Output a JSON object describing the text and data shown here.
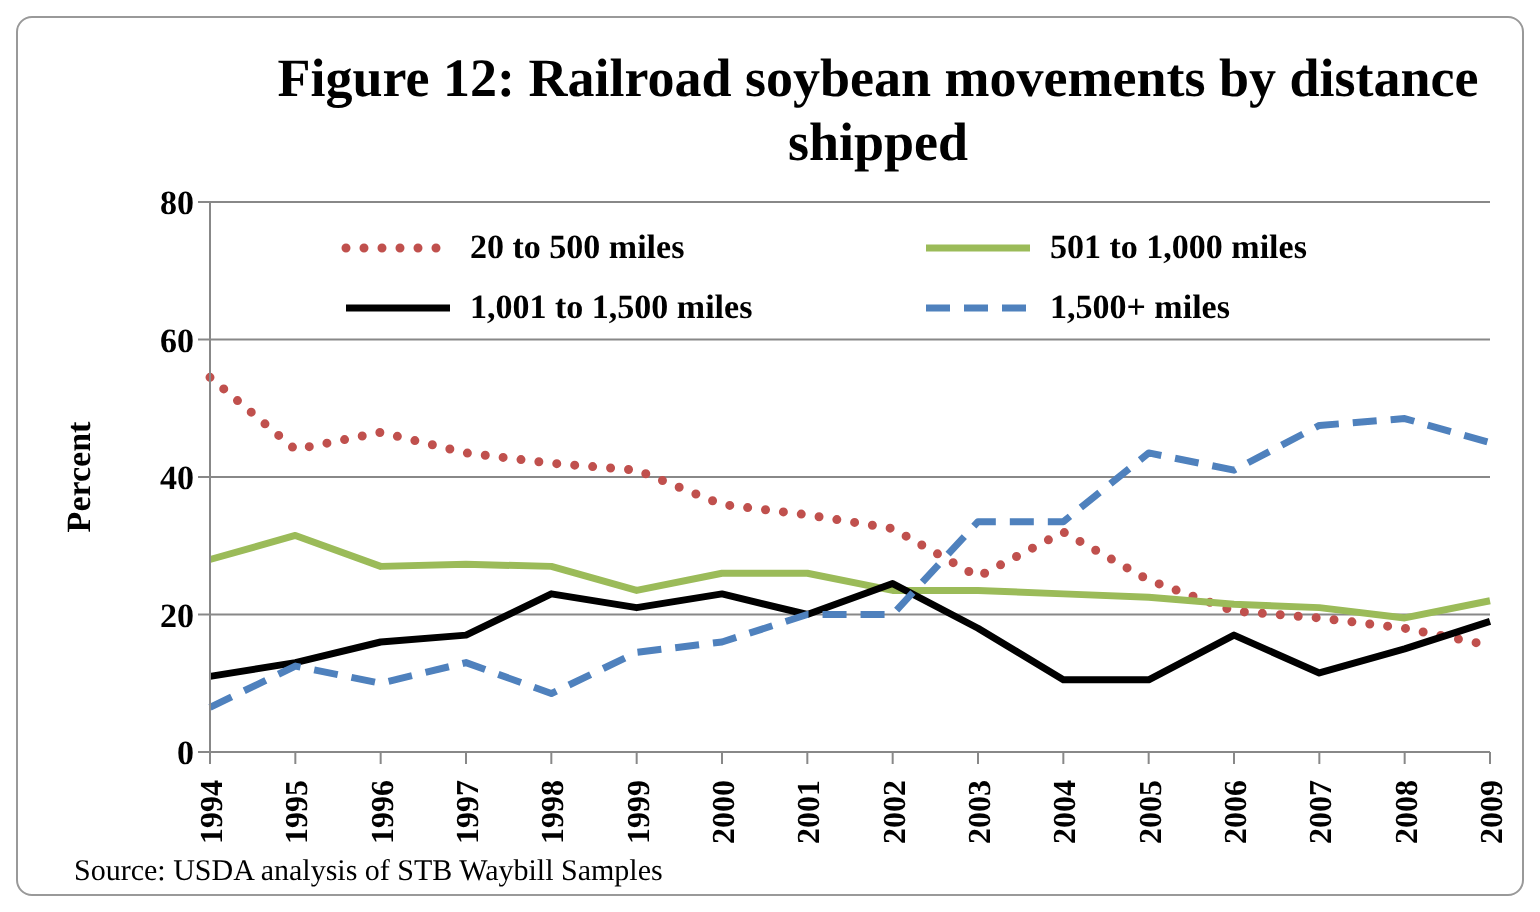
{
  "chart_data": {
    "type": "line",
    "title": "Figure 12:  Railroad soybean movements by distance shipped",
    "ylabel": "Percent",
    "annotations": [
      "Source:  USDA analysis of STB Waybill Samples"
    ],
    "categories": [
      "1994",
      "1995",
      "1996",
      "1997",
      "1998",
      "1999",
      "2000",
      "2001",
      "2002",
      "2003",
      "2004",
      "2005",
      "2006",
      "2007",
      "2008",
      "2009"
    ],
    "ylim": [
      0,
      80
    ],
    "yticks": [
      0,
      20,
      40,
      60,
      80
    ],
    "grid": "y",
    "legend": "top",
    "marker": "none",
    "series": [
      {
        "name": "20 to 500 miles",
        "color": "#c0504d",
        "line_style": "dotted",
        "values": [
          54.5,
          44,
          46.5,
          43.5,
          42,
          41,
          36,
          34.5,
          32.5,
          25.5,
          32,
          25,
          20.5,
          19.5,
          18,
          15.5
        ]
      },
      {
        "name": "501 to 1,000 miles",
        "color": "#9bbb59",
        "line_style": "solid",
        "values": [
          28,
          31.5,
          27,
          27.3,
          27,
          23.5,
          26,
          26,
          23.5,
          23.5,
          23,
          22.5,
          21.5,
          21,
          19.5,
          22
        ]
      },
      {
        "name": "1,001 to 1,500 miles",
        "color": "#000000",
        "line_style": "solid",
        "values": [
          11,
          13,
          16,
          17,
          23,
          21,
          23,
          20,
          24.5,
          18,
          10.5,
          10.5,
          17,
          11.5,
          15,
          19
        ]
      },
      {
        "name": "1,500+ miles",
        "color": "#4f81bd",
        "line_style": "dashed",
        "values": [
          6.5,
          12.5,
          10,
          13,
          8.5,
          14.5,
          16,
          20,
          20,
          33.5,
          33.5,
          43.5,
          41,
          47.5,
          48.5,
          45
        ]
      }
    ]
  }
}
